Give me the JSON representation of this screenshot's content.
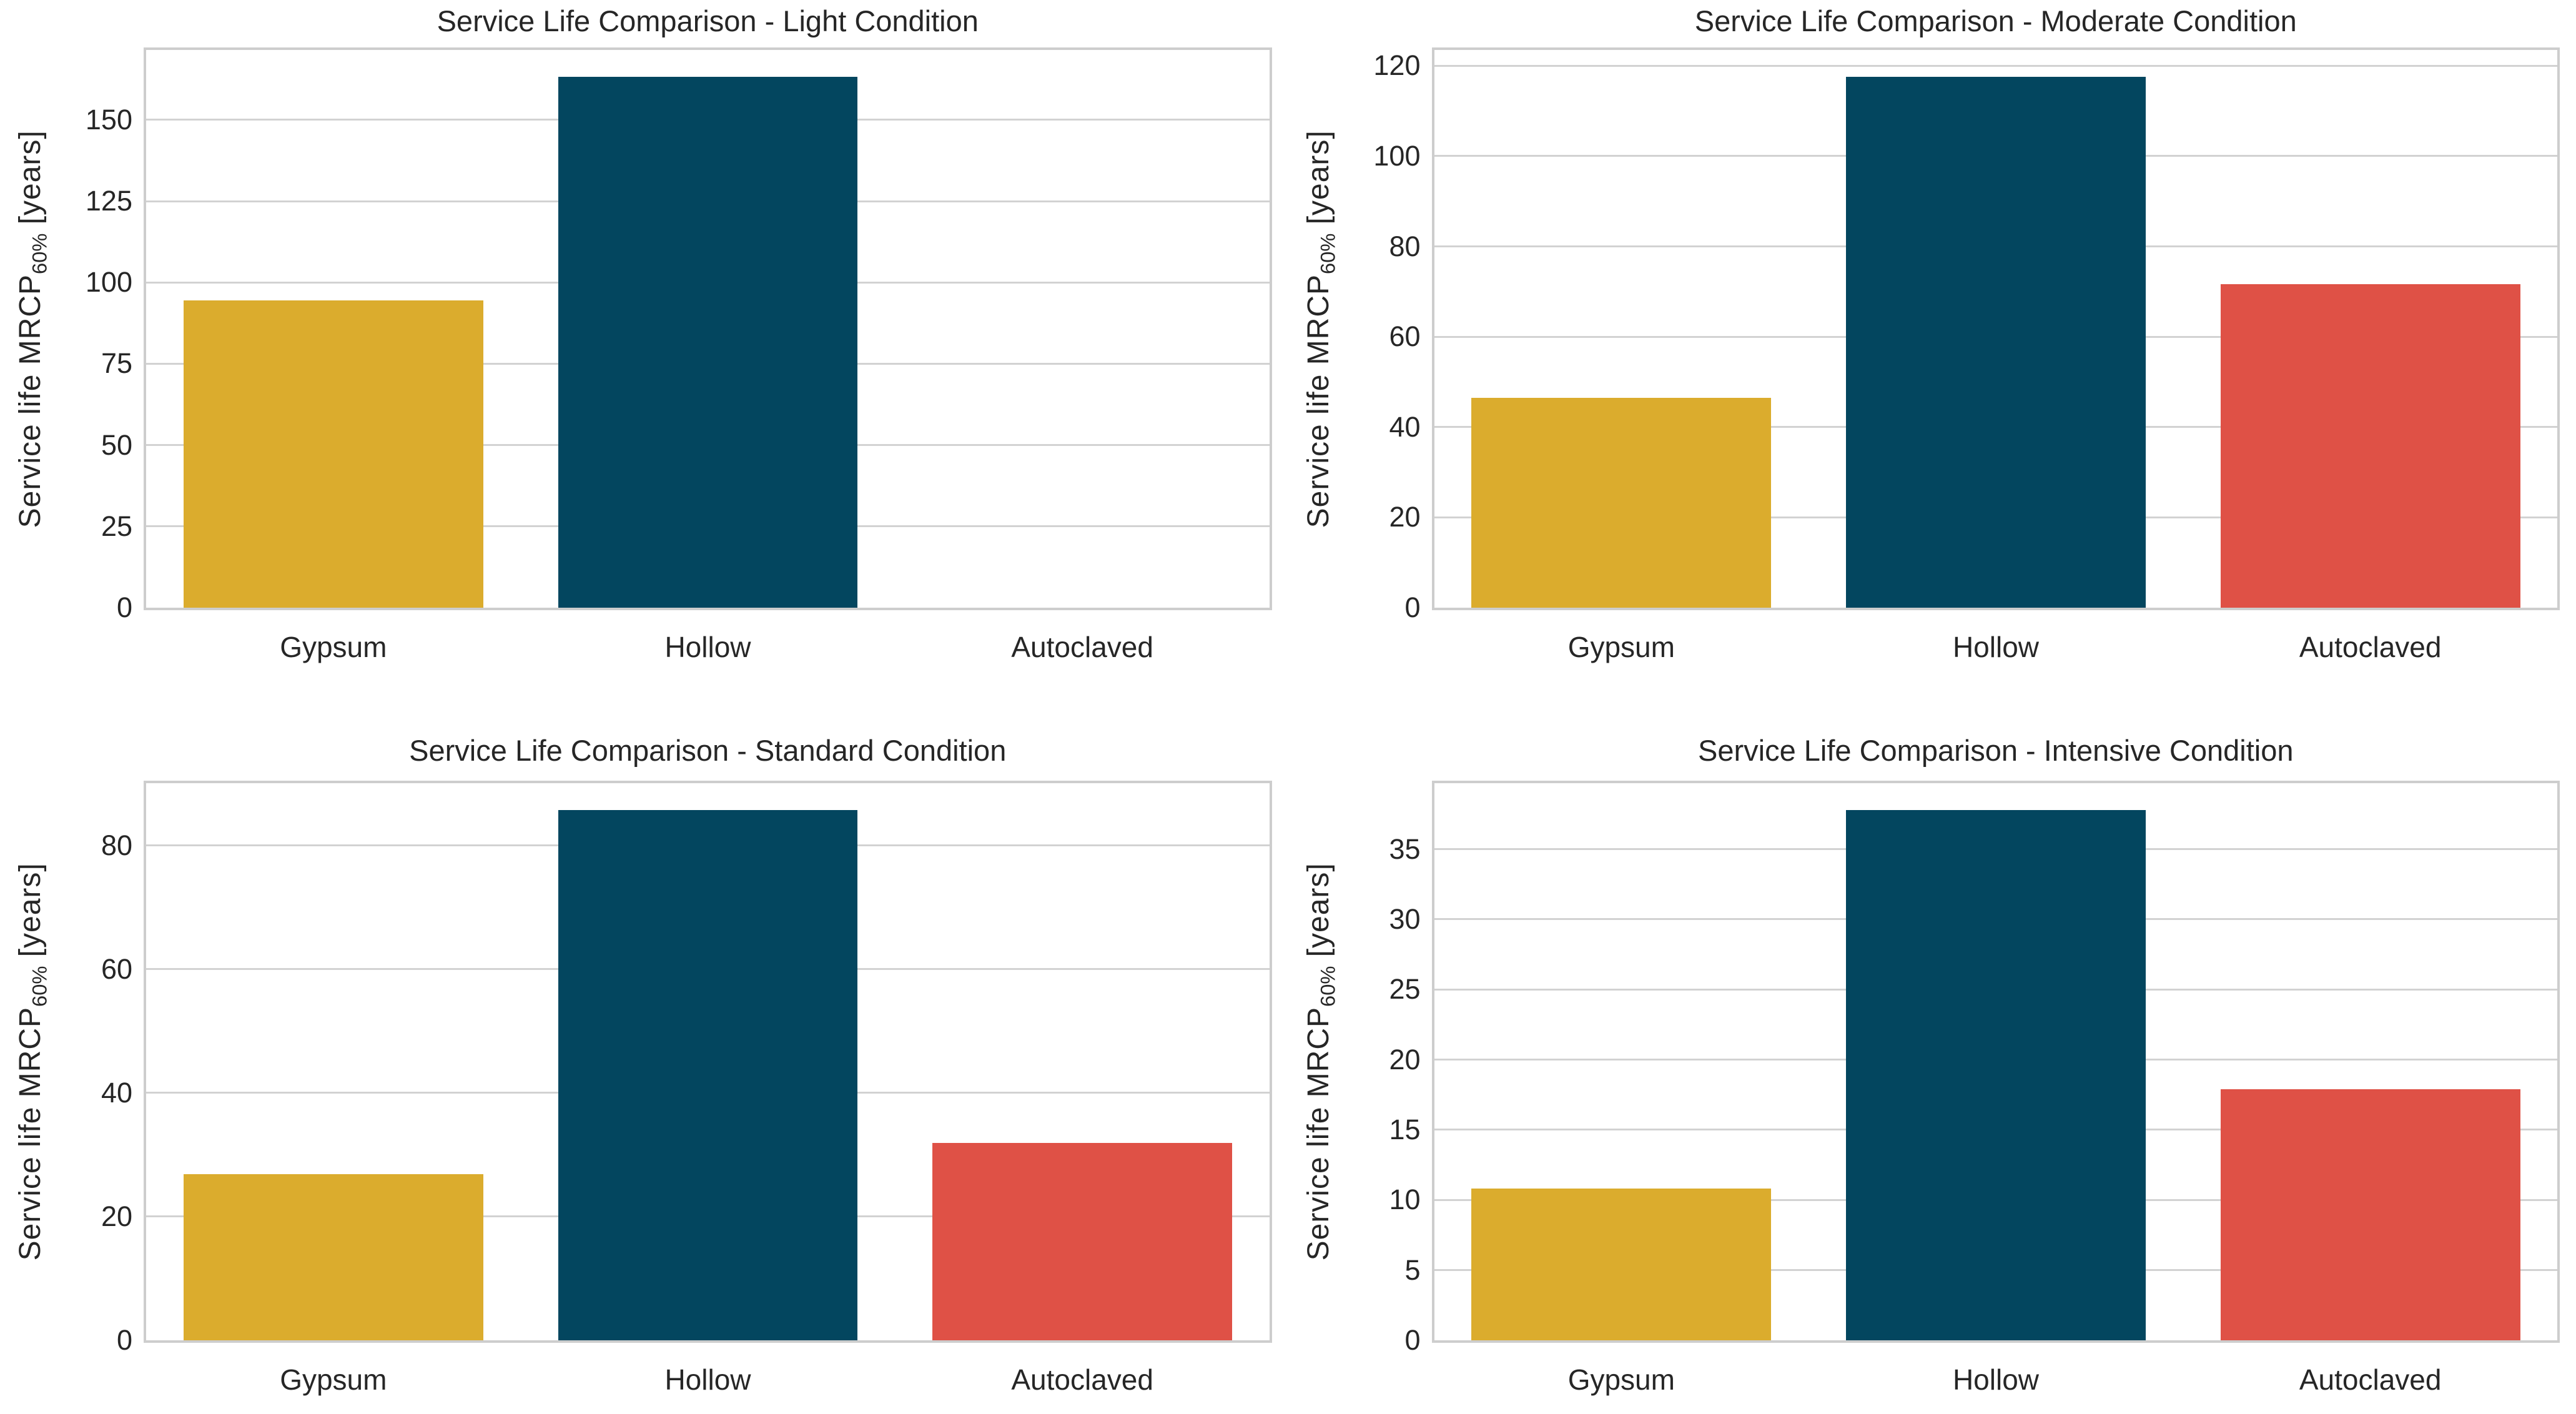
{
  "figure": {
    "background": "#ffffff",
    "text_color": "#262626",
    "grid_color": "#d2d2d2",
    "spine_color": "#cdcdcd"
  },
  "ylabel": {
    "prefix": "Service life MRCP",
    "sub": "60%",
    "suffix": " [years]"
  },
  "categories": [
    "Gypsum",
    "Hollow",
    "Autoclaved"
  ],
  "palette": {
    "gypsum": "#dbac2d",
    "hollow": "#03465f",
    "autoclaved": "#df5146"
  },
  "chart_data": [
    {
      "type": "bar",
      "title": "Service Life Comparison - Light Condition",
      "categories": [
        "Gypsum",
        "Hollow",
        "Autoclaved"
      ],
      "values": [
        94.4,
        163.3,
        0
      ],
      "bar_colors": [
        "#dbac2d",
        "#03465f",
        "#df5146"
      ],
      "yticks": [
        0,
        25,
        50,
        75,
        100,
        125,
        150
      ],
      "ylim": [
        0,
        171.5
      ],
      "xlabel": "",
      "ylabel": "Service life MRCP_60% [years]",
      "grid": "horizontal",
      "legend": "none"
    },
    {
      "type": "bar",
      "title": "Service Life Comparison - Moderate Condition",
      "categories": [
        "Gypsum",
        "Hollow",
        "Autoclaved"
      ],
      "values": [
        46.5,
        117.6,
        71.6
      ],
      "bar_colors": [
        "#dbac2d",
        "#03465f",
        "#df5146"
      ],
      "yticks": [
        0,
        20,
        40,
        60,
        80,
        100,
        120
      ],
      "ylim": [
        0,
        123.5
      ],
      "xlabel": "",
      "ylabel": "Service life MRCP_60% [years]",
      "grid": "horizontal",
      "legend": "none"
    },
    {
      "type": "bar",
      "title": "Service Life Comparison - Standard Condition",
      "categories": [
        "Gypsum",
        "Hollow",
        "Autoclaved"
      ],
      "values": [
        26.9,
        85.8,
        31.9
      ],
      "bar_colors": [
        "#dbac2d",
        "#03465f",
        "#df5146"
      ],
      "yticks": [
        0,
        20,
        40,
        60,
        80
      ],
      "ylim": [
        0,
        90.1
      ],
      "xlabel": "",
      "ylabel": "Service life MRCP_60% [years]",
      "grid": "horizontal",
      "legend": "none"
    },
    {
      "type": "bar",
      "title": "Service Life Comparison - Intensive Condition",
      "categories": [
        "Gypsum",
        "Hollow",
        "Autoclaved"
      ],
      "values": [
        10.8,
        37.8,
        17.9
      ],
      "bar_colors": [
        "#dbac2d",
        "#03465f",
        "#df5146"
      ],
      "yticks": [
        0,
        5,
        10,
        15,
        20,
        25,
        30,
        35
      ],
      "ylim": [
        0,
        39.7
      ],
      "xlabel": "",
      "ylabel": "Service life MRCP_60% [years]",
      "grid": "horizontal",
      "legend": "none"
    }
  ]
}
